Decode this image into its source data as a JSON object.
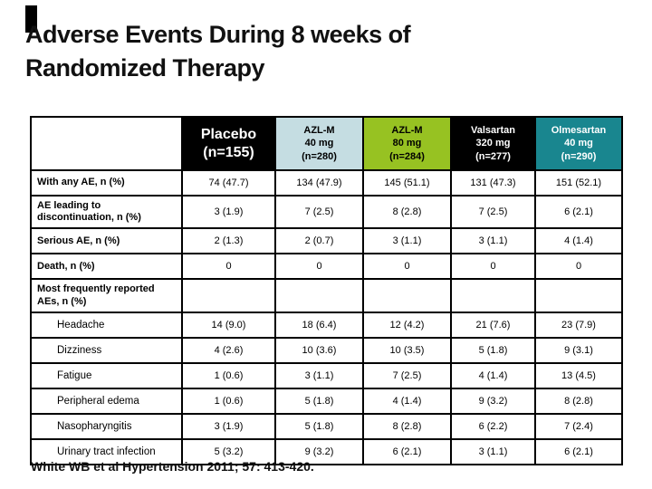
{
  "slide": {
    "title_lines": [
      "Adverse Events During 8 weeks of",
      "Randomized Therapy"
    ],
    "citation": "White WB et al Hypertension 2011; 57: 413-420."
  },
  "colors": {
    "accent_bar": "#000000",
    "table_border": "#000000",
    "header_black": "#000000",
    "header_lightblue": "#C5DDE2",
    "header_green": "#97C222",
    "header_teal": "#19868F",
    "header_light_text": "#FFFFFF",
    "header_dark_text": "#000000"
  },
  "table": {
    "columns": [
      {
        "key": "placebo",
        "lines": [
          "Placebo",
          "(n=155)"
        ],
        "bg": "#000000",
        "fg": "#FFFFFF",
        "big": true
      },
      {
        "key": "azlm-40mg",
        "lines": [
          "AZL-M",
          "40 mg",
          "(n=280)"
        ],
        "bg": "#C5DDE2",
        "fg": "#000000",
        "big": false
      },
      {
        "key": "azlm-80mg",
        "lines": [
          "AZL-M",
          "80 mg",
          "(n=284)"
        ],
        "bg": "#97C222",
        "fg": "#000000",
        "big": false
      },
      {
        "key": "valsartan-320mg",
        "lines": [
          "Valsartan",
          "320 mg",
          "(n=277)"
        ],
        "bg": "#000000",
        "fg": "#FFFFFF",
        "big": false
      },
      {
        "key": "olmesartan-40mg",
        "lines": [
          "Olmesartan",
          "40 mg",
          "(n=290)"
        ],
        "bg": "#19868F",
        "fg": "#FFFFFF",
        "big": false
      }
    ],
    "rows": [
      {
        "key": "with-any-ae",
        "style": "section",
        "label": "With any AE, n (%)",
        "values": [
          "74 (47.7)",
          "134 (47.9)",
          "145 (51.1)",
          "131 (47.3)",
          "151 (52.1)"
        ]
      },
      {
        "key": "ae-discontinuation",
        "style": "section",
        "label": "AE leading to discontinuation, n (%)",
        "values": [
          "3 (1.9)",
          "7 (2.5)",
          "8 (2.8)",
          "7 (2.5)",
          "6 (2.1)"
        ]
      },
      {
        "key": "serious-ae",
        "style": "section",
        "label": "Serious AE, n (%)",
        "values": [
          "2 (1.3)",
          "2 (0.7)",
          "3 (1.1)",
          "3 (1.1)",
          "4 (1.4)"
        ]
      },
      {
        "key": "death",
        "style": "section",
        "label": "Death, n (%)",
        "values": [
          "0",
          "0",
          "0",
          "0",
          "0"
        ]
      },
      {
        "key": "most-frequent-aes",
        "style": "section",
        "label": "Most frequently reported AEs, n (%)",
        "values": [
          "",
          "",
          "",
          "",
          ""
        ]
      },
      {
        "key": "headache",
        "style": "item",
        "label": "Headache",
        "values": [
          "14 (9.0)",
          "18 (6.4)",
          "12 (4.2)",
          "21 (7.6)",
          "23 (7.9)"
        ]
      },
      {
        "key": "dizziness",
        "style": "item",
        "label": "Dizziness",
        "values": [
          "4 (2.6)",
          "10 (3.6)",
          "10 (3.5)",
          "5 (1.8)",
          "9 (3.1)"
        ]
      },
      {
        "key": "fatigue",
        "style": "item",
        "label": "Fatigue",
        "values": [
          "1 (0.6)",
          "3 (1.1)",
          "7 (2.5)",
          "4 (1.4)",
          "13 (4.5)"
        ]
      },
      {
        "key": "peripheral-edema",
        "style": "item",
        "label": "Peripheral edema",
        "values": [
          "1 (0.6)",
          "5 (1.8)",
          "4 (1.4)",
          "9 (3.2)",
          "8 (2.8)"
        ]
      },
      {
        "key": "nasopharyngitis",
        "style": "item",
        "label": "Nasopharyngitis",
        "values": [
          "3 (1.9)",
          "5 (1.8)",
          "8 (2.8)",
          "6 (2.2)",
          "7 (2.4)"
        ]
      },
      {
        "key": "urinary-tract-infection",
        "style": "item",
        "label": "Urinary tract infection",
        "values": [
          "5 (3.2)",
          "9 (3.2)",
          "6 (2.1)",
          "3 (1.1)",
          "6 (2.1)"
        ]
      }
    ]
  }
}
